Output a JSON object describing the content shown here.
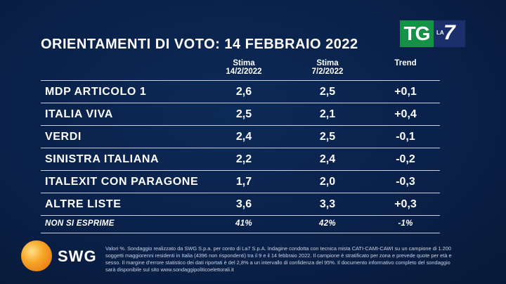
{
  "title": "ORIENTAMENTI DI VOTO: 14 FEBBRAIO 2022",
  "logo": {
    "tg": "TG",
    "la": "LA",
    "seven": "7"
  },
  "chart_data": {
    "type": "table",
    "columns": [
      {
        "line1": "Stima",
        "line2": "14/2/2022"
      },
      {
        "line1": "Stima",
        "line2": "7/2/2022"
      },
      {
        "line1": "Trend",
        "line2": ""
      }
    ],
    "rows": [
      {
        "label": "MDP ARTICOLO 1",
        "values": [
          "2,6",
          "2,5",
          "+0,1"
        ]
      },
      {
        "label": "ITALIA VIVA",
        "values": [
          "2,5",
          "2,1",
          "+0,4"
        ]
      },
      {
        "label": "VERDI",
        "values": [
          "2,4",
          "2,5",
          "-0,1"
        ]
      },
      {
        "label": "SINISTRA ITALIANA",
        "values": [
          "2,2",
          "2,4",
          "-0,2"
        ]
      },
      {
        "label": "ITALEXIT CON PARAGONE",
        "values": [
          "1,7",
          "2,0",
          "-0,3"
        ]
      },
      {
        "label": "ALTRE LISTE",
        "values": [
          "3,6",
          "3,3",
          "+0,3"
        ]
      },
      {
        "label": "NON SI ESPRIME",
        "values": [
          "41%",
          "42%",
          "-1%"
        ]
      }
    ]
  },
  "footer": {
    "brand": "SWG",
    "note": "Valori %. Sondaggio realizzato da SWG S.p.a. per conto di La7 S.p.A. Indagine condotta con tecnica mista CATI-CAMI-CAWI su un campione di 1.200 soggetti maggiorenni residenti in Italia (4396 non rispondenti) tra il 9 e il 14 febbraio 2022. Il campione è stratificato per zona e prevede quote per età e sesso. Il margine d'errore statistico dei dati riportati è del 2,8% a un intervallo di confidenza del 95%. Il documento informativo completo del sondaggio sarà disponibile sul sito www.sondaggipoliticoelettorali.it"
  }
}
